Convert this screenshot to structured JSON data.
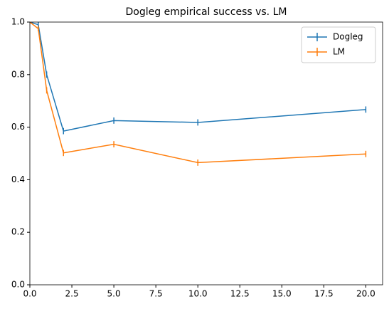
{
  "chart_data": {
    "type": "line",
    "title": "Dogleg empirical success vs. LM",
    "x": [
      0,
      0.5,
      1,
      2,
      5,
      10,
      20
    ],
    "series": [
      {
        "name": "Dogleg",
        "color": "#1f77b4",
        "values": [
          1.0,
          0.99,
          0.8,
          0.585,
          0.625,
          0.618,
          0.667
        ],
        "errors": [
          0.005,
          0.01,
          0.012,
          0.012,
          0.012,
          0.012,
          0.012
        ]
      },
      {
        "name": "LM",
        "color": "#ff7f0e",
        "values": [
          1.0,
          0.975,
          0.74,
          0.502,
          0.535,
          0.465,
          0.498
        ],
        "errors": [
          0.005,
          0.01,
          0.012,
          0.012,
          0.012,
          0.012,
          0.012
        ]
      }
    ],
    "xlim": [
      0,
      21
    ],
    "ylim": [
      0,
      1
    ],
    "xticks": [
      {
        "value": 0,
        "label": "0.0"
      },
      {
        "value": 2.5,
        "label": "2.5"
      },
      {
        "value": 5,
        "label": "5.0"
      },
      {
        "value": 7.5,
        "label": "7.5"
      },
      {
        "value": 10,
        "label": "10.0"
      },
      {
        "value": 12.5,
        "label": "12.5"
      },
      {
        "value": 15,
        "label": "15.0"
      },
      {
        "value": 17.5,
        "label": "17.5"
      },
      {
        "value": 20,
        "label": "20.0"
      }
    ],
    "yticks": [
      {
        "value": 0,
        "label": "0.0"
      },
      {
        "value": 0.2,
        "label": "0.2"
      },
      {
        "value": 0.4,
        "label": "0.4"
      },
      {
        "value": 0.6,
        "label": "0.6"
      },
      {
        "value": 0.8,
        "label": "0.8"
      },
      {
        "value": 1,
        "label": "1.0"
      }
    ],
    "legend": "upper right"
  }
}
